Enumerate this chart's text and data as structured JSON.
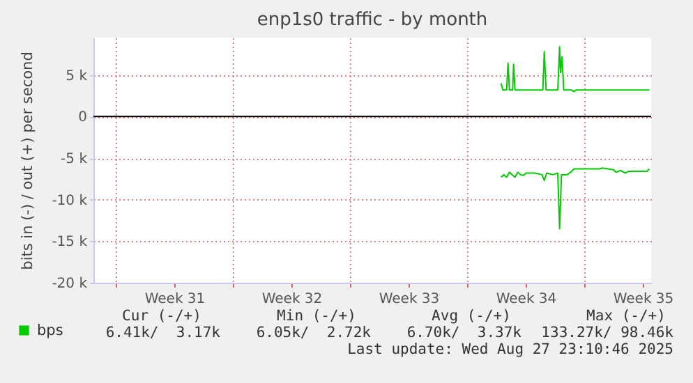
{
  "chart_data": {
    "type": "line",
    "title": "enp1s0 traffic - by month",
    "ylabel": "bits in (-) / out (+) per second",
    "xlim": [
      "2025-07-26T16:00",
      "2025-08-29T00:00"
    ],
    "xticks": [
      {
        "value": "2025-07-28T00:00",
        "label": null
      },
      {
        "value": "2025-07-31T12:00",
        "label": "Week 31"
      },
      {
        "value": "2025-08-04T00:00",
        "label": null
      },
      {
        "value": "2025-08-07T12:00",
        "label": "Week 32"
      },
      {
        "value": "2025-08-11T00:00",
        "label": null
      },
      {
        "value": "2025-08-14T12:00",
        "label": "Week 33"
      },
      {
        "value": "2025-08-18T00:00",
        "label": null
      },
      {
        "value": "2025-08-21T12:00",
        "label": "Week 34"
      },
      {
        "value": "2025-08-25T00:00",
        "label": null
      },
      {
        "value": "2025-08-28T12:00",
        "label": "Week 35"
      }
    ],
    "ylim": [
      -20000,
      9500
    ],
    "yticks": [
      {
        "value": -20000,
        "label": "-20 k"
      },
      {
        "value": -15000,
        "label": "-15 k"
      },
      {
        "value": -10000,
        "label": "-10 k"
      },
      {
        "value": -5000,
        "label": "-5 k"
      },
      {
        "value": 0,
        "label": "0"
      },
      {
        "value": 5000,
        "label": "5 k"
      }
    ],
    "grid": true,
    "legend": "bottom left",
    "ref_lines": [
      {
        "axis": "y",
        "value": 0,
        "color": "#000000"
      }
    ],
    "series": [
      {
        "name": "bps",
        "color": "#00cc00",
        "x": [
          "2025-08-20T00:40",
          "2025-08-20T03:20",
          "2025-08-20T08:40",
          "2025-08-20T10:40",
          "2025-08-20T12:40",
          "2025-08-20T17:20",
          "2025-08-20T18:40",
          "2025-08-20T20:40",
          "2025-08-22T12:40",
          "2025-08-22T14:40",
          "2025-08-22T17:20",
          "2025-08-23T10:00",
          "2025-08-23T12:40",
          "2025-08-23T14:00",
          "2025-08-23T16:00",
          "2025-08-23T18:40",
          "2025-08-24T06:00",
          "2025-08-24T08:40",
          "2025-08-24T12:40",
          "2025-08-25T02:00",
          "2025-08-28T21:20"
        ],
        "values": [
          4000,
          3200,
          3200,
          6400,
          3200,
          3200,
          6300,
          3200,
          3200,
          7800,
          3200,
          3200,
          8400,
          5300,
          7200,
          3200,
          3200,
          3000,
          3200,
          3200,
          3200
        ]
      },
      {
        "color": "#00cc00",
        "x": [
          "2025-08-20T00:40",
          "2025-08-20T04:40",
          "2025-08-20T08:40",
          "2025-08-20T12:40",
          "2025-08-20T16:40",
          "2025-08-20T20:40",
          "2025-08-21T00:40",
          "2025-08-21T04:40",
          "2025-08-21T08:40",
          "2025-08-21T12:40",
          "2025-08-22T00:40",
          "2025-08-22T11:20",
          "2025-08-22T14:40",
          "2025-08-22T18:00",
          "2025-08-23T03:20",
          "2025-08-23T10:00",
          "2025-08-23T12:40",
          "2025-08-23T15:20",
          "2025-08-23T23:20",
          "2025-08-24T06:00",
          "2025-08-24T09:20",
          "2025-08-25T22:00",
          "2025-08-26T01:20",
          "2025-08-26T18:00",
          "2025-08-26T21:20",
          "2025-08-27T04:00",
          "2025-08-27T10:40",
          "2025-08-27T15:20",
          "2025-08-27T20:40",
          "2025-08-28T10:00",
          "2025-08-28T18:00",
          "2025-08-28T21:20"
        ],
        "values": [
          -7300,
          -7000,
          -7300,
          -6700,
          -7000,
          -7300,
          -6700,
          -7000,
          -7100,
          -6800,
          -6800,
          -7000,
          -7700,
          -6800,
          -7000,
          -6800,
          -13500,
          -7000,
          -7000,
          -6600,
          -6300,
          -6300,
          -6200,
          -6400,
          -6700,
          -6500,
          -6800,
          -6600,
          -6600,
          -6600,
          -6600,
          -6300
        ]
      }
    ],
    "annotations": [
      "Cur (-/+)",
      "Min (-/+)",
      "Avg (-/+)",
      "Max (-/+)",
      "6.41k/  3.17k",
      "6.05k/  2.72k",
      "6.70k/  3.37k",
      "133.27k/ 98.46k",
      "Last update: Wed Aug 27 23:10:46 2025"
    ]
  }
}
